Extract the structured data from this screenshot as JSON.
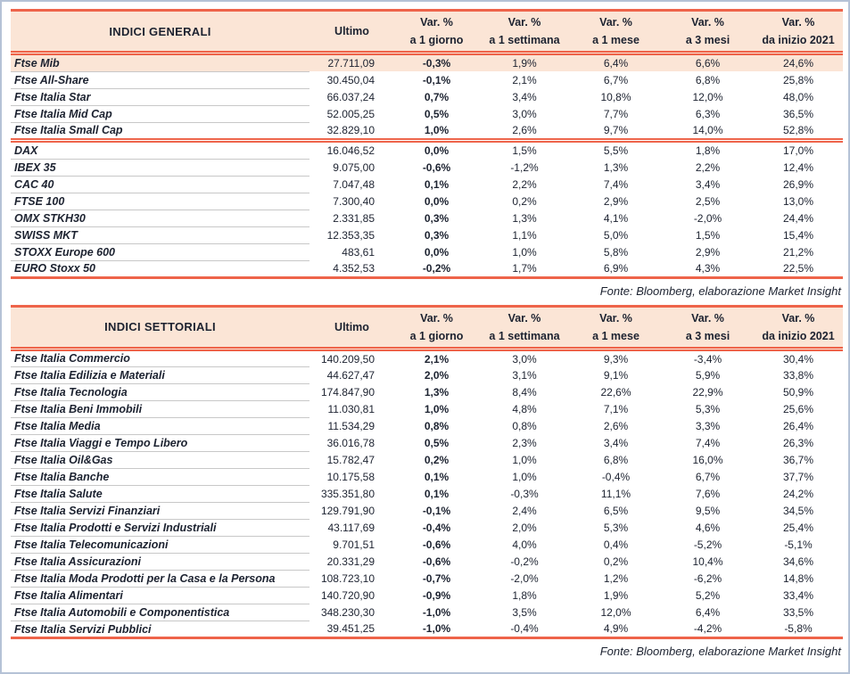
{
  "colors": {
    "accent_line": "#ee644a",
    "header_background": "#fbe5d6",
    "highlight_row_background": "#fbe5d6",
    "text": "#1c2230",
    "outer_border": "#b5c2d6",
    "row_separator": "#c8c8c8"
  },
  "tables": [
    {
      "title": "INDICI GENERALI",
      "col_ultimo": "Ultimo",
      "var_cols": [
        {
          "l1": "Var. %",
          "l2": "a 1 giorno"
        },
        {
          "l1": "Var. %",
          "l2": "a 1 settimana"
        },
        {
          "l1": "Var. %",
          "l2": "a 1 mese"
        },
        {
          "l1": "Var. %",
          "l2": "a 3 mesi"
        },
        {
          "l1": "Var. %",
          "l2": "da inizio 2021"
        }
      ],
      "source": "Fonte: Bloomberg, elaborazione Market Insight",
      "sections": [
        {
          "rows": [
            {
              "name": "Ftse Mib",
              "ultimo": "27.711,09",
              "d1": "-0,3%",
              "w1": "1,9%",
              "m1": "6,4%",
              "m3": "6,6%",
              "ytd": "24,6%",
              "highlight": true
            },
            {
              "name": "Ftse All-Share",
              "ultimo": "30.450,04",
              "d1": "-0,1%",
              "w1": "2,1%",
              "m1": "6,7%",
              "m3": "6,8%",
              "ytd": "25,8%"
            },
            {
              "name": "Ftse Italia Star",
              "ultimo": "66.037,24",
              "d1": "0,7%",
              "w1": "3,4%",
              "m1": "10,8%",
              "m3": "12,0%",
              "ytd": "48,0%"
            },
            {
              "name": "Ftse Italia Mid Cap",
              "ultimo": "52.005,25",
              "d1": "0,5%",
              "w1": "3,0%",
              "m1": "7,7%",
              "m3": "6,3%",
              "ytd": "36,5%"
            },
            {
              "name": "Ftse Italia Small Cap",
              "ultimo": "32.829,10",
              "d1": "1,0%",
              "w1": "2,6%",
              "m1": "9,7%",
              "m3": "14,0%",
              "ytd": "52,8%"
            }
          ]
        },
        {
          "rows": [
            {
              "name": "DAX",
              "ultimo": "16.046,52",
              "d1": "0,0%",
              "w1": "1,5%",
              "m1": "5,5%",
              "m3": "1,8%",
              "ytd": "17,0%"
            },
            {
              "name": "IBEX 35",
              "ultimo": "9.075,00",
              "d1": "-0,6%",
              "w1": "-1,2%",
              "m1": "1,3%",
              "m3": "2,2%",
              "ytd": "12,4%"
            },
            {
              "name": "CAC 40",
              "ultimo": "7.047,48",
              "d1": "0,1%",
              "w1": "2,2%",
              "m1": "7,4%",
              "m3": "3,4%",
              "ytd": "26,9%"
            },
            {
              "name": "FTSE 100",
              "ultimo": "7.300,40",
              "d1": "0,0%",
              "w1": "0,2%",
              "m1": "2,9%",
              "m3": "2,5%",
              "ytd": "13,0%"
            },
            {
              "name": "OMX STKH30",
              "ultimo": "2.331,85",
              "d1": "0,3%",
              "w1": "1,3%",
              "m1": "4,1%",
              "m3": "-2,0%",
              "ytd": "24,4%"
            },
            {
              "name": "SWISS MKT",
              "ultimo": "12.353,35",
              "d1": "0,3%",
              "w1": "1,1%",
              "m1": "5,0%",
              "m3": "1,5%",
              "ytd": "15,4%"
            },
            {
              "name": "STOXX Europe 600",
              "ultimo": "483,61",
              "d1": "0,0%",
              "w1": "1,0%",
              "m1": "5,8%",
              "m3": "2,9%",
              "ytd": "21,2%"
            },
            {
              "name": "EURO Stoxx 50",
              "ultimo": "4.352,53",
              "d1": "-0,2%",
              "w1": "1,7%",
              "m1": "6,9%",
              "m3": "4,3%",
              "ytd": "22,5%"
            }
          ]
        }
      ]
    },
    {
      "title": "INDICI SETTORIALI",
      "col_ultimo": "Ultimo",
      "var_cols": [
        {
          "l1": "Var. %",
          "l2": "a 1 giorno"
        },
        {
          "l1": "Var. %",
          "l2": "a 1 settimana"
        },
        {
          "l1": "Var. %",
          "l2": "a 1 mese"
        },
        {
          "l1": "Var. %",
          "l2": "a 3 mesi"
        },
        {
          "l1": "Var. %",
          "l2": "da inizio 2021"
        }
      ],
      "source": "Fonte: Bloomberg, elaborazione Market Insight",
      "sections": [
        {
          "rows": [
            {
              "name": "Ftse Italia Commercio",
              "ultimo": "140.209,50",
              "d1": "2,1%",
              "w1": "3,0%",
              "m1": "9,3%",
              "m3": "-3,4%",
              "ytd": "30,4%"
            },
            {
              "name": "Ftse Italia Edilizia e Materiali",
              "ultimo": "44.627,47",
              "d1": "2,0%",
              "w1": "3,1%",
              "m1": "9,1%",
              "m3": "5,9%",
              "ytd": "33,8%"
            },
            {
              "name": "Ftse Italia Tecnologia",
              "ultimo": "174.847,90",
              "d1": "1,3%",
              "w1": "8,4%",
              "m1": "22,6%",
              "m3": "22,9%",
              "ytd": "50,9%"
            },
            {
              "name": "Ftse Italia Beni Immobili",
              "ultimo": "11.030,81",
              "d1": "1,0%",
              "w1": "4,8%",
              "m1": "7,1%",
              "m3": "5,3%",
              "ytd": "25,6%"
            },
            {
              "name": "Ftse Italia Media",
              "ultimo": "11.534,29",
              "d1": "0,8%",
              "w1": "0,8%",
              "m1": "2,6%",
              "m3": "3,3%",
              "ytd": "26,4%"
            },
            {
              "name": "Ftse Italia Viaggi e Tempo Libero",
              "ultimo": "36.016,78",
              "d1": "0,5%",
              "w1": "2,3%",
              "m1": "3,4%",
              "m3": "7,4%",
              "ytd": "26,3%"
            },
            {
              "name": "Ftse Italia Oil&Gas",
              "ultimo": "15.782,47",
              "d1": "0,2%",
              "w1": "1,0%",
              "m1": "6,8%",
              "m3": "16,0%",
              "ytd": "36,7%"
            },
            {
              "name": "Ftse Italia Banche",
              "ultimo": "10.175,58",
              "d1": "0,1%",
              "w1": "1,0%",
              "m1": "-0,4%",
              "m3": "6,7%",
              "ytd": "37,7%"
            },
            {
              "name": "Ftse Italia Salute",
              "ultimo": "335.351,80",
              "d1": "0,1%",
              "w1": "-0,3%",
              "m1": "11,1%",
              "m3": "7,6%",
              "ytd": "24,2%"
            },
            {
              "name": "Ftse Italia Servizi Finanziari",
              "ultimo": "129.791,90",
              "d1": "-0,1%",
              "w1": "2,4%",
              "m1": "6,5%",
              "m3": "9,5%",
              "ytd": "34,5%"
            },
            {
              "name": "Ftse Italia Prodotti e Servizi Industriali",
              "ultimo": "43.117,69",
              "d1": "-0,4%",
              "w1": "2,0%",
              "m1": "5,3%",
              "m3": "4,6%",
              "ytd": "25,4%"
            },
            {
              "name": "Ftse Italia Telecomunicazioni",
              "ultimo": "9.701,51",
              "d1": "-0,6%",
              "w1": "4,0%",
              "m1": "0,4%",
              "m3": "-5,2%",
              "ytd": "-5,1%"
            },
            {
              "name": "Ftse Italia Assicurazioni",
              "ultimo": "20.331,29",
              "d1": "-0,6%",
              "w1": "-0,2%",
              "m1": "0,2%",
              "m3": "10,4%",
              "ytd": "34,6%"
            },
            {
              "name": "Ftse Italia Moda Prodotti per la Casa e la Persona",
              "ultimo": "108.723,10",
              "d1": "-0,7%",
              "w1": "-2,0%",
              "m1": "1,2%",
              "m3": "-6,2%",
              "ytd": "14,8%"
            },
            {
              "name": "Ftse Italia Alimentari",
              "ultimo": "140.720,90",
              "d1": "-0,9%",
              "w1": "1,8%",
              "m1": "1,9%",
              "m3": "5,2%",
              "ytd": "33,4%"
            },
            {
              "name": "Ftse Italia Automobili e Componentistica",
              "ultimo": "348.230,30",
              "d1": "-1,0%",
              "w1": "3,5%",
              "m1": "12,0%",
              "m3": "6,4%",
              "ytd": "33,5%"
            },
            {
              "name": "Ftse Italia Servizi Pubblici",
              "ultimo": "39.451,25",
              "d1": "-1,0%",
              "w1": "-0,4%",
              "m1": "4,9%",
              "m3": "-4,2%",
              "ytd": "-5,8%"
            }
          ]
        }
      ]
    }
  ]
}
